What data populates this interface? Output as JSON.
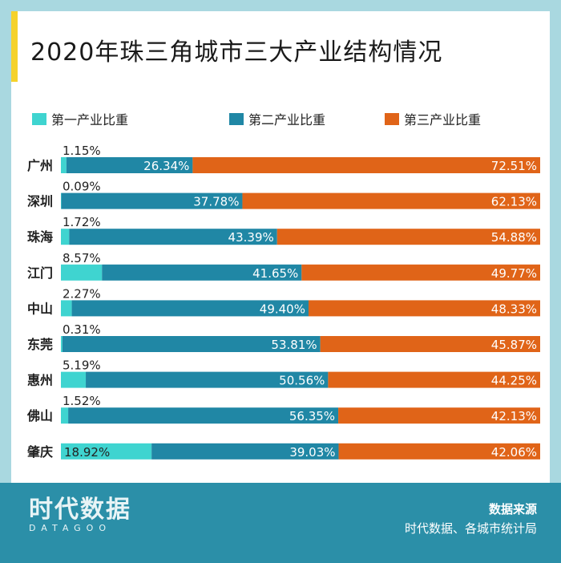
{
  "title": "2020年珠三角城市三大产业结构情况",
  "footer": {
    "logo_main": "时代数据",
    "logo_sub": "DATAGOO",
    "source_title": "数据来源",
    "source_text": "时代数据、各城市统计局"
  },
  "chart_data": {
    "type": "bar",
    "orientation": "horizontal",
    "stacked": "100%",
    "title": "2020年珠三角城市三大产业结构情况",
    "categories": [
      "广州",
      "深圳",
      "珠海",
      "江门",
      "中山",
      "东莞",
      "惠州",
      "佛山",
      "肇庆"
    ],
    "series": [
      {
        "name": "第一产业比重",
        "color": "#3fd4d0",
        "values": [
          1.15,
          0.09,
          1.72,
          8.57,
          2.27,
          0.31,
          5.19,
          1.52,
          18.92
        ]
      },
      {
        "name": "第二产业比重",
        "color": "#2087a5",
        "values": [
          26.34,
          37.78,
          43.39,
          41.65,
          49.4,
          53.81,
          50.56,
          56.35,
          39.03
        ]
      },
      {
        "name": "第三产业比重",
        "color": "#e06418",
        "values": [
          72.51,
          62.13,
          54.88,
          49.77,
          48.33,
          45.87,
          44.25,
          42.13,
          42.06
        ]
      }
    ],
    "value_format": "{v}%",
    "legend_position": "top",
    "xlim": [
      0,
      100
    ]
  }
}
